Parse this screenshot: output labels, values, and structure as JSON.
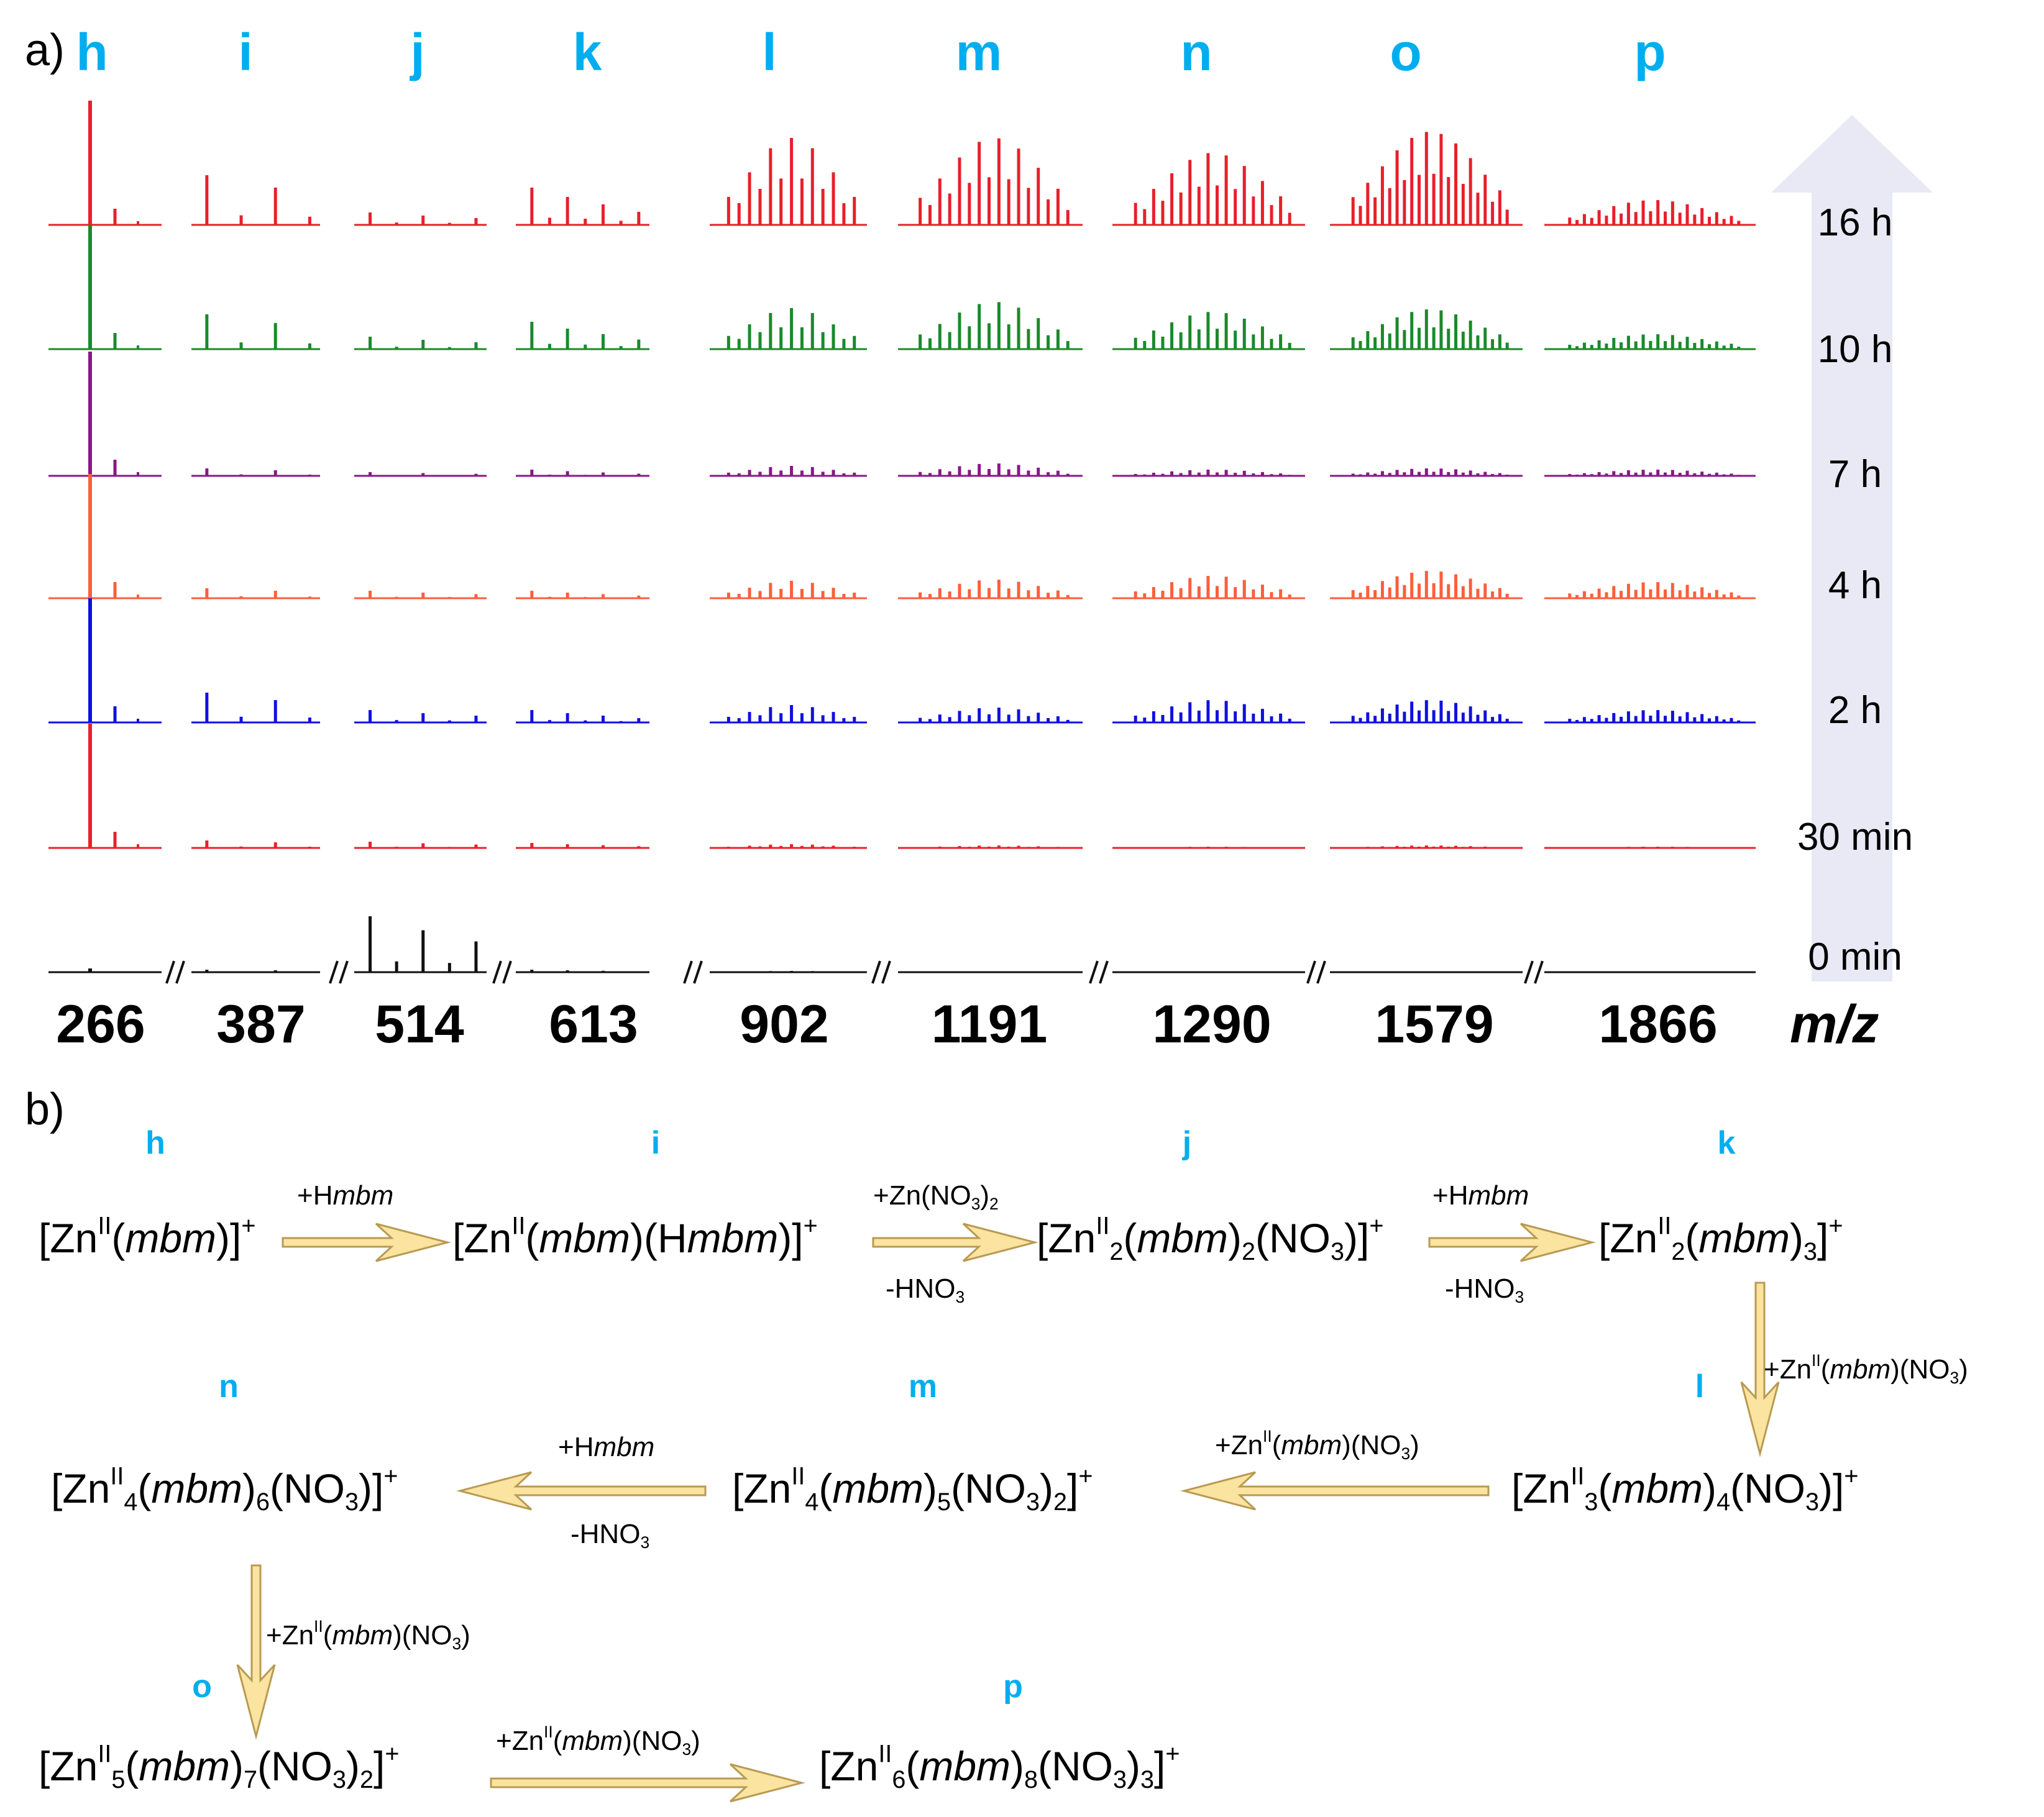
{
  "panel_a": {
    "label": "a)"
  },
  "panel_b": {
    "label": "b)"
  },
  "chart_data": {
    "type": "stacked mass spectra",
    "title": "",
    "xlabel": "m/z",
    "peak_labels": [
      "h",
      "i",
      "j",
      "k",
      "l",
      "m",
      "n",
      "o",
      "p"
    ],
    "mz_ticks": [
      "266",
      "387",
      "514",
      "613",
      "902",
      "1191",
      "1290",
      "1579",
      "1866"
    ],
    "axis_break": "//",
    "time_labels": [
      "16 h",
      "10 h",
      "7 h",
      "4 h",
      "2 h",
      "30 min",
      "0 min"
    ],
    "time_arrow": "increasing upward",
    "series": [
      {
        "name": "16 h",
        "color": "#e8202a",
        "intensities": [
          1.0,
          0.4,
          0.1,
          0.3,
          0.7,
          0.7,
          0.58,
          0.75,
          0.2
        ]
      },
      {
        "name": "10 h",
        "color": "#1a8a2a",
        "intensities": [
          1.0,
          0.28,
          0.1,
          0.22,
          0.33,
          0.38,
          0.3,
          0.32,
          0.12
        ]
      },
      {
        "name": "7 h",
        "color": "#8a168a",
        "intensities": [
          1.0,
          0.06,
          0.03,
          0.05,
          0.08,
          0.1,
          0.05,
          0.06,
          0.05
        ]
      },
      {
        "name": "4 h",
        "color": "#ff5e3a",
        "intensities": [
          1.0,
          0.08,
          0.06,
          0.06,
          0.14,
          0.15,
          0.18,
          0.22,
          0.13
        ]
      },
      {
        "name": "2 h",
        "color": "#1010e0",
        "intensities": [
          1.0,
          0.24,
          0.1,
          0.1,
          0.14,
          0.12,
          0.18,
          0.18,
          0.1
        ]
      },
      {
        "name": "30 min",
        "color": "#e8202a",
        "intensities": [
          1.0,
          0.06,
          0.05,
          0.04,
          0.03,
          0.02,
          0.01,
          0.02,
          0.01
        ]
      },
      {
        "name": "0 min",
        "color": "#111111",
        "intensities": [
          0.02,
          0.02,
          0.45,
          0.02,
          0.01,
          0.0,
          0.0,
          0.0,
          0.0
        ]
      }
    ]
  },
  "scheme": {
    "species": {
      "h": "[Zn<sup>II</sup>(<i>mbm</i>)]<sup>+</sup>",
      "i": "[Zn<sup>II</sup>(<i>mbm</i>)(H<i>mbm</i>)]<sup>+</sup>",
      "j": "[Zn<sup>II</sup><sub>2</sub>(<i>mbm</i>)<sub>2</sub>(NO<sub>3</sub>)]<sup>+</sup>",
      "k": "[Zn<sup>II</sup><sub>2</sub>(<i>mbm</i>)<sub>3</sub>]<sup>+</sup>",
      "l": "[Zn<sup>II</sup><sub>3</sub>(<i>mbm</i>)<sub>4</sub>(NO<sub>3</sub>)]<sup>+</sup>",
      "m": "[Zn<sup>II</sup><sub>4</sub>(<i>mbm</i>)<sub>5</sub>(NO<sub>3</sub>)<sub>2</sub>]<sup>+</sup>",
      "n": "[Zn<sup>II</sup><sub>4</sub>(<i>mbm</i>)<sub>6</sub>(NO<sub>3</sub>)]<sup>+</sup>",
      "o": "[Zn<sup>II</sup><sub>5</sub>(<i>mbm</i>)<sub>7</sub>(NO<sub>3</sub>)<sub>2</sub>]<sup>+</sup>",
      "p": "[Zn<sup>II</sup><sub>6</sub>(<i>mbm</i>)<sub>8</sub>(NO<sub>3</sub>)<sub>3</sub>]<sup>+</sup>"
    },
    "reagents": {
      "add_hmbm": "+H<i>mbm</i>",
      "add_zn_no3_2": "+Zn(NO<sub>3</sub>)<sub>2</sub>",
      "minus_hno3": "-HNO<sub>3</sub>",
      "add_zn_mbm_no3": "+Zn<sup>II</sup>(<i>mbm</i>)(NO<sub>3</sub>)"
    }
  },
  "colors": {
    "letter": "#00aeef",
    "arrow_fill": "#fbe3a0",
    "arrow_stroke": "#b89a52",
    "time_arrow": "#e8e9f5"
  }
}
